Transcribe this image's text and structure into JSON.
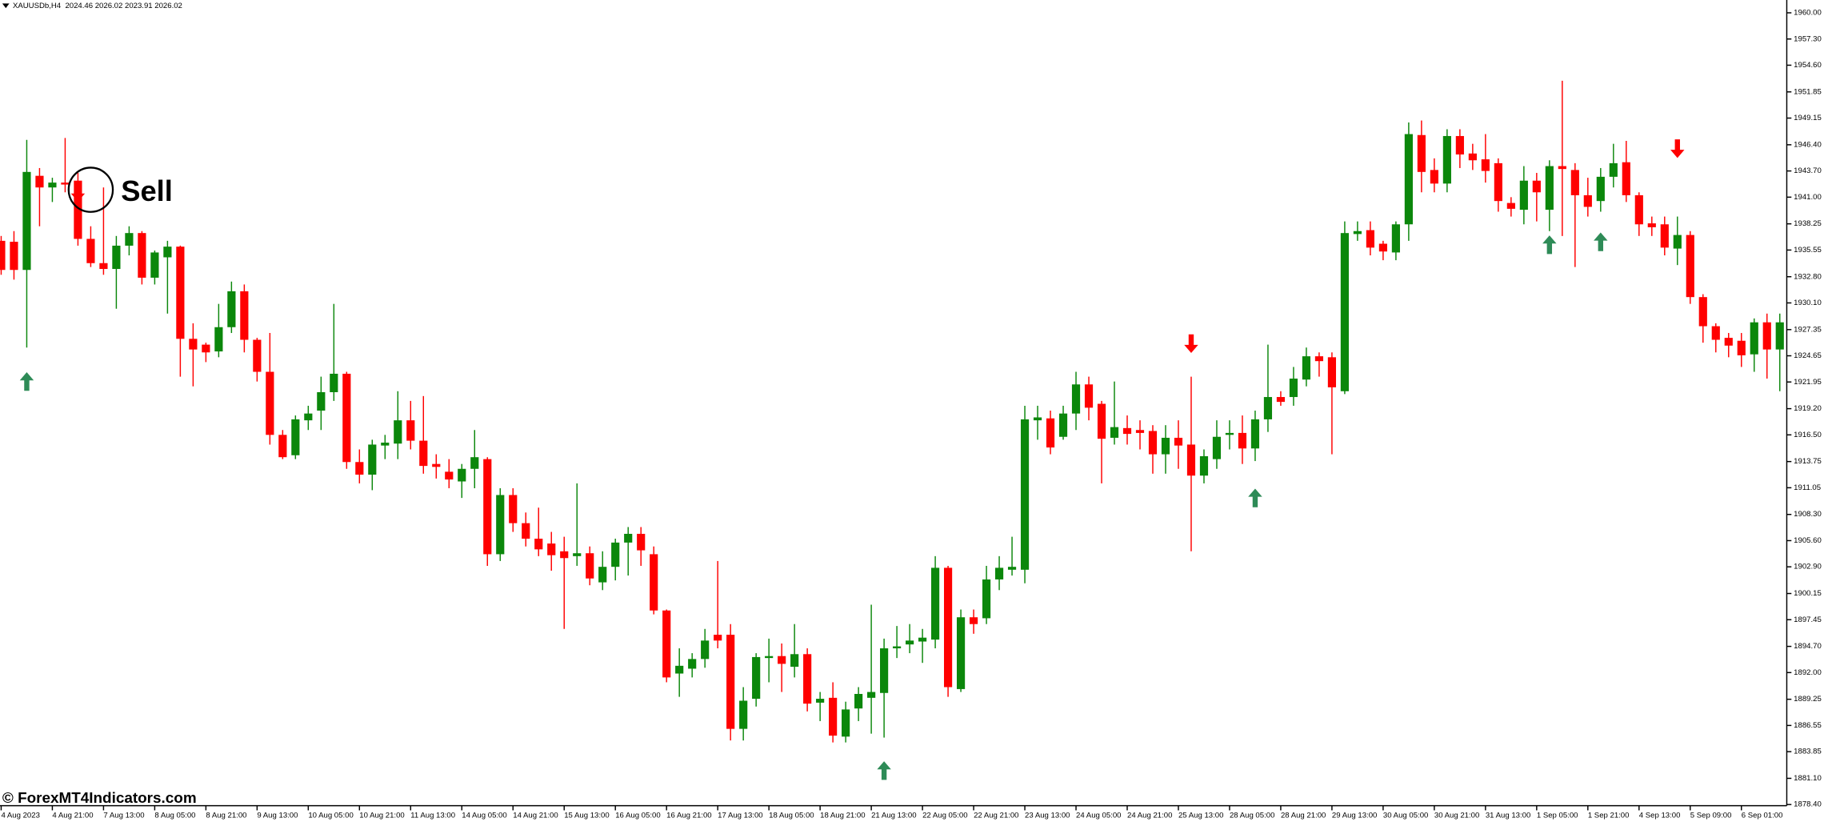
{
  "chart_data": {
    "type": "candlestick",
    "title": "XAUUSDb,H4  2024.46 2026.02 2023.91 2026.02",
    "annotation": "Sell",
    "watermark": "© ForexMT4Indicators.com",
    "up_color": "#0b870b",
    "down_color": "#ff0000",
    "buy_color": "#2e8b57",
    "sell_color": "#ff0000",
    "grid": false,
    "ylim": [
      1878.28,
      1961.32
    ],
    "yticks": [
      {
        "value": 1960,
        "label": "1960.00"
      },
      {
        "value": 1957.3,
        "label": "1957.30"
      },
      {
        "value": 1954.6,
        "label": "1954.60"
      },
      {
        "value": 1951.85,
        "label": "1951.85"
      },
      {
        "value": 1949.15,
        "label": "1949.15"
      },
      {
        "value": 1946.4,
        "label": "1946.40"
      },
      {
        "value": 1943.7,
        "label": "1943.70"
      },
      {
        "value": 1941,
        "label": "1941.00"
      },
      {
        "value": 1938.25,
        "label": "1938.25"
      },
      {
        "value": 1935.55,
        "label": "1935.55"
      },
      {
        "value": 1932.8,
        "label": "1932.80"
      },
      {
        "value": 1930.1,
        "label": "1930.10"
      },
      {
        "value": 1927.35,
        "label": "1927.35"
      },
      {
        "value": 1924.65,
        "label": "1924.65"
      },
      {
        "value": 1921.95,
        "label": "1921.95"
      },
      {
        "value": 1919.2,
        "label": "1919.20"
      },
      {
        "value": 1916.5,
        "label": "1916.50"
      },
      {
        "value": 1913.75,
        "label": "1913.75"
      },
      {
        "value": 1911.05,
        "label": "1911.05"
      },
      {
        "value": 1908.3,
        "label": "1908.30"
      },
      {
        "value": 1905.6,
        "label": "1905.60"
      },
      {
        "value": 1902.9,
        "label": "1902.90"
      },
      {
        "value": 1900.15,
        "label": "1900.15"
      },
      {
        "value": 1897.45,
        "label": "1897.45"
      },
      {
        "value": 1894.7,
        "label": "1894.70"
      },
      {
        "value": 1892,
        "label": "1892.00"
      },
      {
        "value": 1889.25,
        "label": "1889.25"
      },
      {
        "value": 1886.55,
        "label": "1886.55"
      },
      {
        "value": 1883.85,
        "label": "1883.85"
      },
      {
        "value": 1881.1,
        "label": "1881.10"
      },
      {
        "value": 1878.4,
        "label": "1878.40"
      }
    ],
    "categories": [
      "4 Aug 2023",
      null,
      null,
      null,
      "4 Aug 21:00",
      null,
      null,
      null,
      "7 Aug 13:00",
      null,
      null,
      null,
      "8 Aug 05:00",
      null,
      null,
      null,
      "8 Aug 21:00",
      null,
      null,
      null,
      "9 Aug 13:00",
      null,
      null,
      null,
      "10 Aug 05:00",
      null,
      null,
      null,
      "10 Aug 21:00",
      null,
      null,
      null,
      "11 Aug 13:00",
      null,
      null,
      null,
      "14 Aug 05:00",
      null,
      null,
      null,
      "14 Aug 21:00",
      null,
      null,
      null,
      "15 Aug 13:00",
      null,
      null,
      null,
      "16 Aug 05:00",
      null,
      null,
      null,
      "16 Aug 21:00",
      null,
      null,
      null,
      "17 Aug 13:00",
      null,
      null,
      null,
      "18 Aug 05:00",
      null,
      null,
      null,
      "18 Aug 21:00",
      null,
      null,
      null,
      "21 Aug 13:00",
      null,
      null,
      null,
      "22 Aug 05:00",
      null,
      null,
      null,
      "22 Aug 21:00",
      null,
      null,
      null,
      "23 Aug 13:00",
      null,
      null,
      null,
      "24 Aug 05:00",
      null,
      null,
      null,
      "24 Aug 21:00",
      null,
      null,
      null,
      "25 Aug 13:00",
      null,
      null,
      null,
      "28 Aug 05:00",
      null,
      null,
      null,
      "28 Aug 21:00",
      null,
      null,
      null,
      "29 Aug 13:00",
      null,
      null,
      null,
      "30 Aug 05:00",
      null,
      null,
      null,
      "30 Aug 21:00",
      null,
      null,
      null,
      "31 Aug 13:00",
      null,
      null,
      null,
      "1 Sep 05:00",
      null,
      null,
      null,
      "1 Sep 21:00",
      null,
      null,
      null,
      "4 Sep 13:00",
      null,
      null,
      null,
      "5 Sep 09:00",
      null,
      null,
      null,
      "6 Sep 01:00",
      null,
      null,
      null
    ],
    "open": [
      1936.5,
      1936.4,
      1933.5,
      1943.2,
      1942.0,
      1942.5,
      1942.7,
      1936.7,
      1934.2,
      1933.6,
      1936,
      1937.3,
      1932.7,
      1934.8,
      1935.9,
      1926.4,
      1925.8,
      1925.1,
      1927.6,
      1931.3,
      1926.3,
      1923,
      1916.5,
      1914.4,
      1918,
      1919,
      1920.9,
      1922.8,
      1913.7,
      1912.4,
      1915.4,
      1915.6,
      1918,
      1915.9,
      1913.5,
      1912.7,
      1911.7,
      1913,
      1914,
      1904.2,
      1910.3,
      1907.4,
      1905.8,
      1905.3,
      1904.5,
      1904,
      1904.3,
      1901.3,
      1902.9,
      1905.4,
      1906.3,
      1904.2,
      1898.4,
      1891.9,
      1892.4,
      1893.4,
      1895.9,
      1895.9,
      1886.2,
      1889.3,
      1893.5,
      1893.7,
      1892.6,
      1893.9,
      1888.9,
      1889.4,
      1885.4,
      1888.3,
      1889.4,
      1889.9,
      1894.5,
      1894.9,
      1895.2,
      1895.4,
      1902.8,
      1890.3,
      1897.7,
      1897.6,
      1901.6,
      1902.6,
      1902.6,
      1918,
      1918.2,
      1916.3,
      1918.7,
      1921.7,
      1919.7,
      1916.2,
      1917.2,
      1917,
      1916.9,
      1914.5,
      1916.2,
      1915.5,
      1912.3,
      1914,
      1916.5,
      1916.7,
      1915.1,
      1918.1,
      1920.4,
      1920.4,
      1922.2,
      1924.6,
      1924.5,
      1921,
      1937.2,
      1937.6,
      1936.2,
      1935.3,
      1938.2,
      1947.4,
      1943.8,
      1942.4,
      1947.3,
      1945.5,
      1944.9,
      1944.5,
      1940.4,
      1939.7,
      1942.7,
      1939.7,
      1944.2,
      1943.8,
      1941.2,
      1940.6,
      1943.1,
      1944.6,
      1941.2,
      1938.3,
      1938.2,
      1935.7,
      1937.1,
      1930.7,
      1927.7,
      1926.5,
      1926.2,
      1924.8,
      1928.1,
      1925.3
    ],
    "high": [
      1937,
      1937.5,
      1946.9,
      1944,
      1943,
      1947.1,
      1943.5,
      1938,
      1942,
      1937,
      1938,
      1937.5,
      1935.5,
      1936.5,
      1936,
      1928,
      1926,
      1930,
      1932.3,
      1932,
      1926.5,
      1927,
      1917,
      1918.5,
      1919.5,
      1922.5,
      1930,
      1923,
      1915,
      1916,
      1916.5,
      1921,
      1920,
      1920.5,
      1914.5,
      1914,
      1913.5,
      1917,
      1914.2,
      1911,
      1911,
      1908.5,
      1909,
      1906.5,
      1906,
      1911.5,
      1905,
      1904.5,
      1905.8,
      1907,
      1907,
      1905,
      1898.5,
      1894.5,
      1894,
      1896.5,
      1903.5,
      1897,
      1890.5,
      1894,
      1895.5,
      1895,
      1897,
      1894.5,
      1890,
      1891,
      1889,
      1890.5,
      1899,
      1895.5,
      1896.8,
      1897,
      1896.5,
      1904,
      1903,
      1898.5,
      1898.5,
      1903,
      1904,
      1906,
      1919.5,
      1919.5,
      1919,
      1919.5,
      1923,
      1922.5,
      1920,
      1922,
      1918.5,
      1918,
      1917.5,
      1917.5,
      1918,
      1922.5,
      1915,
      1918,
      1918,
      1918.5,
      1919,
      1925.8,
      1921,
      1923.5,
      1925.5,
      1925,
      1925,
      1938.5,
      1938.5,
      1938.5,
      1936.5,
      1938.5,
      1948.7,
      1948.9,
      1945,
      1948,
      1948,
      1946.5,
      1947.5,
      1945,
      1941,
      1944.2,
      1943.5,
      1944.8,
      1953,
      1944.5,
      1943,
      1944,
      1946.5,
      1946.8,
      1941.5,
      1939,
      1939,
      1939,
      1937.5,
      1931,
      1928,
      1927,
      1927,
      1928.5,
      1929,
      1929
    ],
    "low": [
      1933,
      1932.5,
      1925.5,
      1938,
      1940.5,
      1941.5,
      1936,
      1933.8,
      1933,
      1929.5,
      1935,
      1932,
      1932,
      1929,
      1922.5,
      1921.5,
      1924,
      1924.5,
      1927,
      1925,
      1922,
      1915.5,
      1914,
      1914,
      1917,
      1917,
      1920,
      1913,
      1911.5,
      1910.8,
      1914,
      1914,
      1915,
      1912.5,
      1912,
      1911,
      1910,
      1911,
      1903,
      1903.5,
      1906.5,
      1905,
      1904,
      1902.5,
      1896.5,
      1903,
      1901,
      1900.5,
      1901.5,
      1902,
      1903,
      1898,
      1891,
      1889.5,
      1891.5,
      1892.5,
      1894.5,
      1885,
      1885,
      1888.5,
      1891,
      1890,
      1891.5,
      1888,
      1887,
      1884.8,
      1884.8,
      1887,
      1885.7,
      1885.3,
      1893.5,
      1894,
      1893,
      1894.5,
      1889.5,
      1890,
      1896,
      1897,
      1900.5,
      1902,
      1901.2,
      1916,
      1914.5,
      1916,
      1917,
      1918,
      1911.5,
      1915.5,
      1915.5,
      1915,
      1912.5,
      1912.5,
      1913,
      1904.5,
      1911.5,
      1913,
      1915,
      1913.5,
      1913.8,
      1916.8,
      1919.5,
      1919.5,
      1921.5,
      1922.5,
      1914.5,
      1920.7,
      1936.5,
      1935,
      1934.5,
      1934.5,
      1936.5,
      1941.5,
      1941.5,
      1941.5,
      1944,
      1943.8,
      1942.5,
      1939.5,
      1939,
      1938.2,
      1938.5,
      1937.5,
      1937,
      1933.8,
      1939,
      1939.5,
      1942,
      1940.5,
      1937,
      1937,
      1935,
      1934,
      1930,
      1926,
      1925,
      1924.5,
      1923.5,
      1923,
      1922.3,
      1921
    ],
    "close": [
      1933.5,
      1933.5,
      1943.6,
      1942.0,
      1942.5,
      1942.3,
      1936.7,
      1934.2,
      1933.6,
      1936,
      1937.3,
      1932.7,
      1935.3,
      1935.9,
      1926.4,
      1925.3,
      1925,
      1927.6,
      1931.3,
      1926.3,
      1923,
      1916.5,
      1914.2,
      1918.1,
      1918.7,
      1920.9,
      1922.8,
      1913.7,
      1912.4,
      1915.5,
      1915.7,
      1918,
      1915.9,
      1913.3,
      1913.2,
      1911.9,
      1913,
      1914.2,
      1904.2,
      1910.3,
      1907.4,
      1905.8,
      1904.7,
      1904.1,
      1903.8,
      1904.3,
      1901.7,
      1902.9,
      1905.4,
      1906.3,
      1904.6,
      1898.4,
      1891.5,
      1892.7,
      1893.4,
      1895.3,
      1895.3,
      1886.2,
      1889.1,
      1893.6,
      1893.7,
      1892.9,
      1893.9,
      1888.8,
      1889.3,
      1885.5,
      1888.2,
      1889.8,
      1890,
      1894.5,
      1894.7,
      1895.3,
      1895.6,
      1902.8,
      1890.5,
      1897.7,
      1897,
      1901.6,
      1902.8,
      1902.9,
      1918.1,
      1918.3,
      1915.2,
      1918.7,
      1921.7,
      1919.3,
      1916.1,
      1917.3,
      1916.6,
      1916.7,
      1914.5,
      1916.2,
      1915.4,
      1912.3,
      1914.3,
      1916.3,
      1916.7,
      1915.1,
      1918.1,
      1920.4,
      1919.9,
      1922.3,
      1924.6,
      1924.1,
      1921.4,
      1937.3,
      1937.5,
      1935.8,
      1935.4,
      1938.2,
      1947.5,
      1943.6,
      1942.4,
      1947.3,
      1945.4,
      1944.8,
      1943.7,
      1940.6,
      1939.8,
      1942.7,
      1941.5,
      1944.2,
      1943.9,
      1941.2,
      1940,
      1943.1,
      1944.5,
      1941.2,
      1938.2,
      1937.9,
      1935.8,
      1937.1,
      1930.7,
      1927.7,
      1926.3,
      1925.7,
      1924.7,
      1928.1,
      1925.3,
      1928.1
    ],
    "buy_signals": [
      null,
      null,
      1922,
      null,
      null,
      null,
      null,
      null,
      null,
      null,
      null,
      null,
      null,
      null,
      null,
      null,
      null,
      null,
      null,
      null,
      null,
      null,
      null,
      null,
      null,
      null,
      null,
      null,
      null,
      null,
      null,
      null,
      null,
      null,
      null,
      null,
      null,
      null,
      null,
      null,
      null,
      null,
      null,
      null,
      null,
      null,
      null,
      null,
      null,
      null,
      null,
      null,
      null,
      null,
      null,
      null,
      null,
      null,
      null,
      null,
      null,
      null,
      null,
      null,
      null,
      null,
      null,
      null,
      null,
      1881.9,
      null,
      null,
      null,
      null,
      null,
      null,
      null,
      null,
      null,
      null,
      null,
      null,
      null,
      null,
      null,
      null,
      null,
      null,
      null,
      null,
      null,
      null,
      null,
      null,
      null,
      null,
      null,
      null,
      1910,
      null,
      null,
      null,
      null,
      null,
      null,
      null,
      null,
      null,
      null,
      null,
      null,
      null,
      null,
      null,
      null,
      null,
      null,
      null,
      null,
      null,
      null,
      1936.1,
      null,
      null,
      null,
      1936.4,
      null,
      null,
      null,
      null,
      null,
      null,
      null,
      null,
      null,
      null,
      null,
      null,
      null,
      null
    ],
    "sell_signals": [
      null,
      null,
      null,
      null,
      null,
      null,
      1941.5,
      null,
      null,
      null,
      null,
      null,
      null,
      null,
      null,
      null,
      null,
      null,
      null,
      null,
      null,
      null,
      null,
      null,
      null,
      null,
      null,
      null,
      null,
      null,
      null,
      null,
      null,
      null,
      null,
      null,
      null,
      null,
      null,
      null,
      null,
      null,
      null,
      null,
      null,
      null,
      null,
      null,
      null,
      null,
      null,
      null,
      null,
      null,
      null,
      null,
      null,
      null,
      null,
      null,
      null,
      null,
      null,
      null,
      null,
      null,
      null,
      null,
      null,
      null,
      null,
      null,
      null,
      null,
      null,
      null,
      null,
      null,
      null,
      null,
      null,
      null,
      null,
      null,
      null,
      null,
      null,
      null,
      null,
      null,
      null,
      null,
      null,
      1925.9,
      null,
      null,
      null,
      null,
      null,
      null,
      null,
      null,
      null,
      null,
      null,
      null,
      null,
      null,
      null,
      null,
      null,
      null,
      null,
      null,
      null,
      null,
      null,
      null,
      null,
      null,
      null,
      null,
      null,
      null,
      null,
      null,
      null,
      null,
      null,
      null,
      null,
      1946,
      null,
      null,
      null,
      null,
      null,
      null,
      null,
      null,
      null,
      null,
      null,
      null
    ]
  }
}
